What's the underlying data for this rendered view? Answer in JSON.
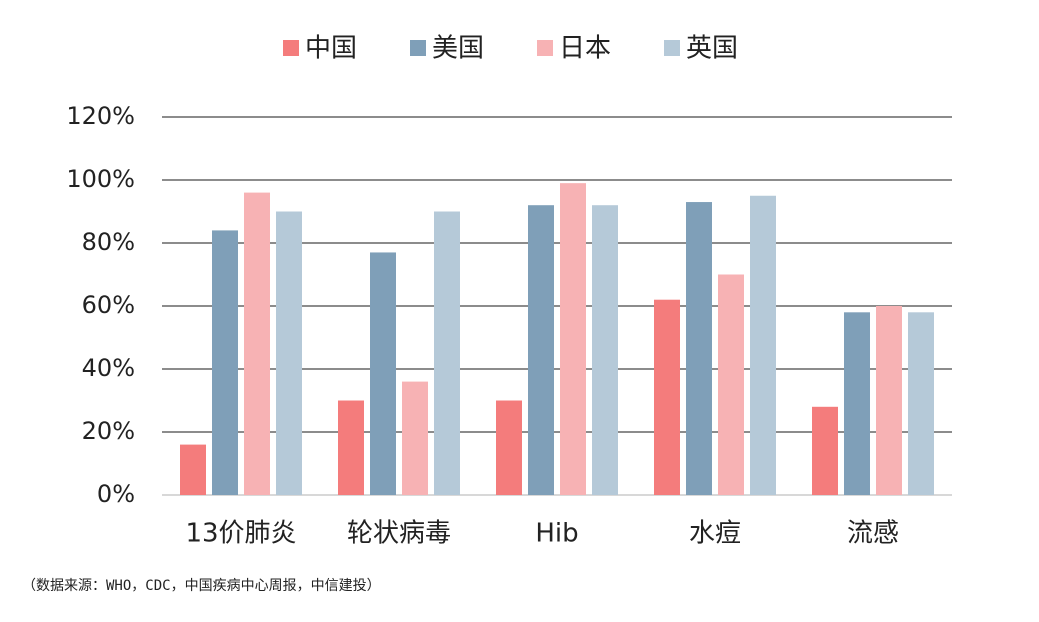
{
  "chart_data": {
    "type": "bar",
    "categories": [
      "13价肺炎",
      "轮状病毒",
      "Hib",
      "水痘",
      "流感"
    ],
    "series": [
      {
        "name": "中国",
        "color": "#f47c7c",
        "values": [
          16,
          30,
          30,
          62,
          28
        ]
      },
      {
        "name": "美国",
        "color": "#7f9fb8",
        "values": [
          84,
          77,
          92,
          93,
          58
        ]
      },
      {
        "name": "日本",
        "color": "#f7b2b4",
        "values": [
          96,
          36,
          99,
          70,
          60
        ]
      },
      {
        "name": "英国",
        "color": "#b5c9d8",
        "values": [
          90,
          90,
          92,
          95,
          58
        ]
      }
    ],
    "ylim": [
      0,
      120
    ],
    "yticks": [
      {
        "value": 0,
        "label": "0%"
      },
      {
        "value": 20,
        "label": "20%"
      },
      {
        "value": 40,
        "label": "40%"
      },
      {
        "value": 60,
        "label": "60%"
      },
      {
        "value": 80,
        "label": "80%"
      },
      {
        "value": 100,
        "label": "100%"
      },
      {
        "value": 120,
        "label": "120%"
      }
    ],
    "grid": true,
    "legend": "top",
    "note": "（数据来源：WHO，CDC，中国疾病中心周报，中信建投）"
  }
}
